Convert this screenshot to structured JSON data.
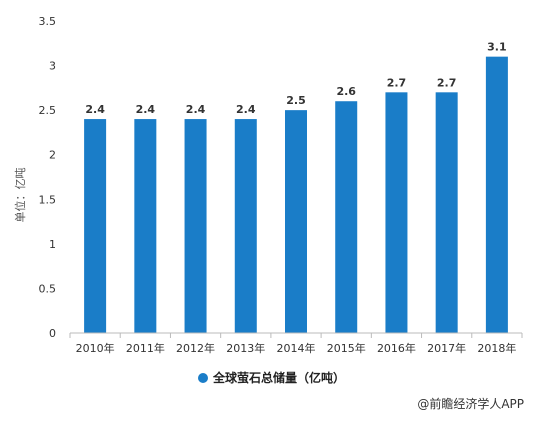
{
  "chart_data": {
    "type": "bar",
    "categories": [
      "2010年",
      "2011年",
      "2012年",
      "2013年",
      "2014年",
      "2015年",
      "2016年",
      "2017年",
      "2018年"
    ],
    "series": [
      {
        "name": "全球萤石总储量（亿吨）",
        "values": [
          2.4,
          2.4,
          2.4,
          2.4,
          2.5,
          2.6,
          2.7,
          2.7,
          3.1
        ]
      }
    ],
    "data_labels": [
      "2.4",
      "2.4",
      "2.4",
      "2.4",
      "2.5",
      "2.6",
      "2.7",
      "2.7",
      "3.1"
    ],
    "ylabel": "单位：亿吨",
    "ylim": [
      0,
      3.5
    ],
    "yticks": [
      "0",
      "0.5",
      "1",
      "1.5",
      "2",
      "2.5",
      "3",
      "3.5"
    ],
    "grid": false,
    "legend_position": "bottom-center",
    "bar_color": "#1a7dc8"
  },
  "source": "@前瞻经济学人APP"
}
